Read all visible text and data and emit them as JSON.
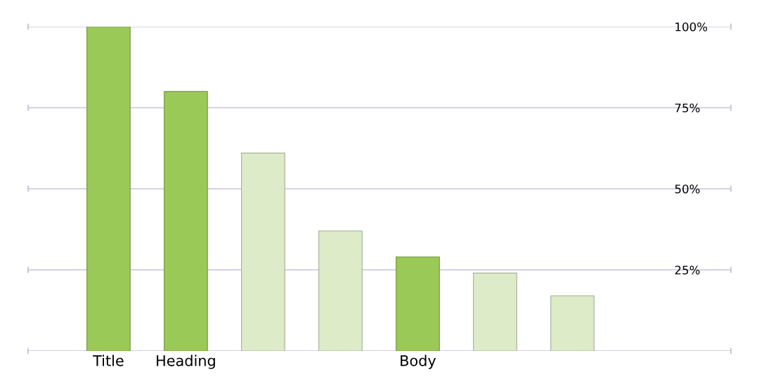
{
  "chart_data": {
    "type": "bar",
    "categories": [
      "Title",
      "Heading",
      null,
      null,
      "Body",
      null,
      null
    ],
    "values": [
      100,
      80,
      61,
      37,
      29,
      24,
      17
    ],
    "colors": [
      "#9bc957",
      "#9bc957",
      "#ddebc8",
      "#ddebc8",
      "#9bc957",
      "#ddebc8",
      "#ddebc8"
    ],
    "ylim": [
      0,
      100
    ],
    "yticks": [
      {
        "value": 0,
        "label": null
      },
      {
        "value": 25,
        "label": "25%"
      },
      {
        "value": 50,
        "label": "50%"
      },
      {
        "value": 75,
        "label": "75%"
      },
      {
        "value": 100,
        "label": "100%"
      }
    ],
    "grid": "y"
  }
}
